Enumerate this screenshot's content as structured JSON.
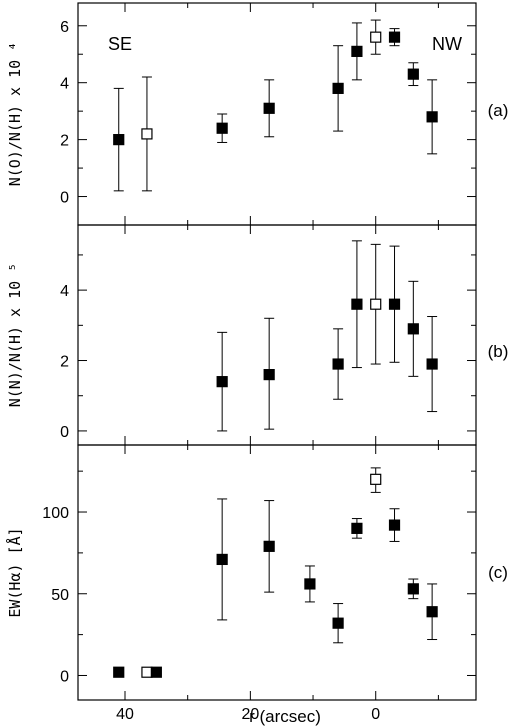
{
  "chart_data": {
    "type": "scatter",
    "xlabel": "r (arcsec)",
    "x_inverted": true,
    "xlim": [
      47.5,
      -16
    ],
    "xticks": [
      40,
      20,
      0
    ],
    "marker_legend": {
      "filled": "filled square",
      "open": "open square"
    },
    "panels": [
      {
        "tag": "(a)",
        "ylabel": "N(O)/N(H)  x 10 ⁴",
        "ylim": [
          -1,
          6.8
        ],
        "yticks": [
          0,
          2,
          4,
          6
        ],
        "annotations": [
          "SE",
          "NW"
        ],
        "points": [
          {
            "x": 41,
            "y": 2.0,
            "lo": 0.2,
            "hi": 3.8,
            "open": false
          },
          {
            "x": 36.5,
            "y": 2.2,
            "lo": 0.2,
            "hi": 4.2,
            "open": true
          },
          {
            "x": 24.5,
            "y": 2.4,
            "lo": 1.9,
            "hi": 2.9,
            "open": false
          },
          {
            "x": 17,
            "y": 3.1,
            "lo": 2.1,
            "hi": 4.1,
            "open": false
          },
          {
            "x": 6,
            "y": 3.8,
            "lo": 2.3,
            "hi": 5.3,
            "open": false
          },
          {
            "x": 3,
            "y": 5.1,
            "lo": 4.1,
            "hi": 6.1,
            "open": false
          },
          {
            "x": 0,
            "y": 5.6,
            "lo": 5.0,
            "hi": 6.2,
            "open": true
          },
          {
            "x": -3,
            "y": 5.6,
            "lo": 5.3,
            "hi": 5.9,
            "open": false
          },
          {
            "x": -6,
            "y": 4.3,
            "lo": 3.9,
            "hi": 4.7,
            "open": false
          },
          {
            "x": -9,
            "y": 2.8,
            "lo": 1.5,
            "hi": 4.1,
            "open": false
          }
        ]
      },
      {
        "tag": "(b)",
        "ylabel": "N(N)/N(H)  x 10 ⁵",
        "ylim": [
          -0.4,
          5.85
        ],
        "yticks": [
          0,
          2,
          4
        ],
        "annotations": [],
        "points": [
          {
            "x": 24.5,
            "y": 1.4,
            "lo": 0.0,
            "hi": 2.8,
            "open": false
          },
          {
            "x": 17,
            "y": 1.6,
            "lo": 0.05,
            "hi": 3.2,
            "open": false
          },
          {
            "x": 6,
            "y": 1.9,
            "lo": 0.9,
            "hi": 2.9,
            "open": false
          },
          {
            "x": 3,
            "y": 3.6,
            "lo": 1.8,
            "hi": 5.4,
            "open": false
          },
          {
            "x": 0,
            "y": 3.6,
            "lo": 1.9,
            "hi": 5.3,
            "open": true
          },
          {
            "x": -3,
            "y": 3.6,
            "lo": 1.95,
            "hi": 5.25,
            "open": false
          },
          {
            "x": -6,
            "y": 2.9,
            "lo": 1.55,
            "hi": 4.25,
            "open": false
          },
          {
            "x": -9,
            "y": 1.9,
            "lo": 0.55,
            "hi": 3.25,
            "open": false
          }
        ]
      },
      {
        "tag": "(c)",
        "ylabel": "EW(Hα)  [Å]",
        "ylim": [
          -15,
          141
        ],
        "yticks": [
          0,
          50,
          100
        ],
        "annotations": [],
        "points": [
          {
            "x": 41,
            "y": 2,
            "lo": 0,
            "hi": 4,
            "open": false
          },
          {
            "x": 36.5,
            "y": 2,
            "lo": 0,
            "hi": 4,
            "open": true
          },
          {
            "x": 35,
            "y": 2,
            "lo": 0,
            "hi": 4,
            "open": false
          },
          {
            "x": 24.5,
            "y": 71,
            "lo": 34,
            "hi": 108,
            "open": false
          },
          {
            "x": 17,
            "y": 79,
            "lo": 51,
            "hi": 107,
            "open": false
          },
          {
            "x": 10.5,
            "y": 56,
            "lo": 45,
            "hi": 67,
            "open": false
          },
          {
            "x": 6,
            "y": 32,
            "lo": 20,
            "hi": 44,
            "open": false
          },
          {
            "x": 3,
            "y": 90,
            "lo": 84,
            "hi": 96,
            "open": false
          },
          {
            "x": 0,
            "y": 120,
            "lo": 112,
            "hi": 127,
            "open": true
          },
          {
            "x": -3,
            "y": 92,
            "lo": 82,
            "hi": 102,
            "open": false
          },
          {
            "x": -6,
            "y": 53,
            "lo": 47,
            "hi": 59,
            "open": false
          },
          {
            "x": -9,
            "y": 39,
            "lo": 22,
            "hi": 56,
            "open": false
          }
        ]
      }
    ]
  }
}
